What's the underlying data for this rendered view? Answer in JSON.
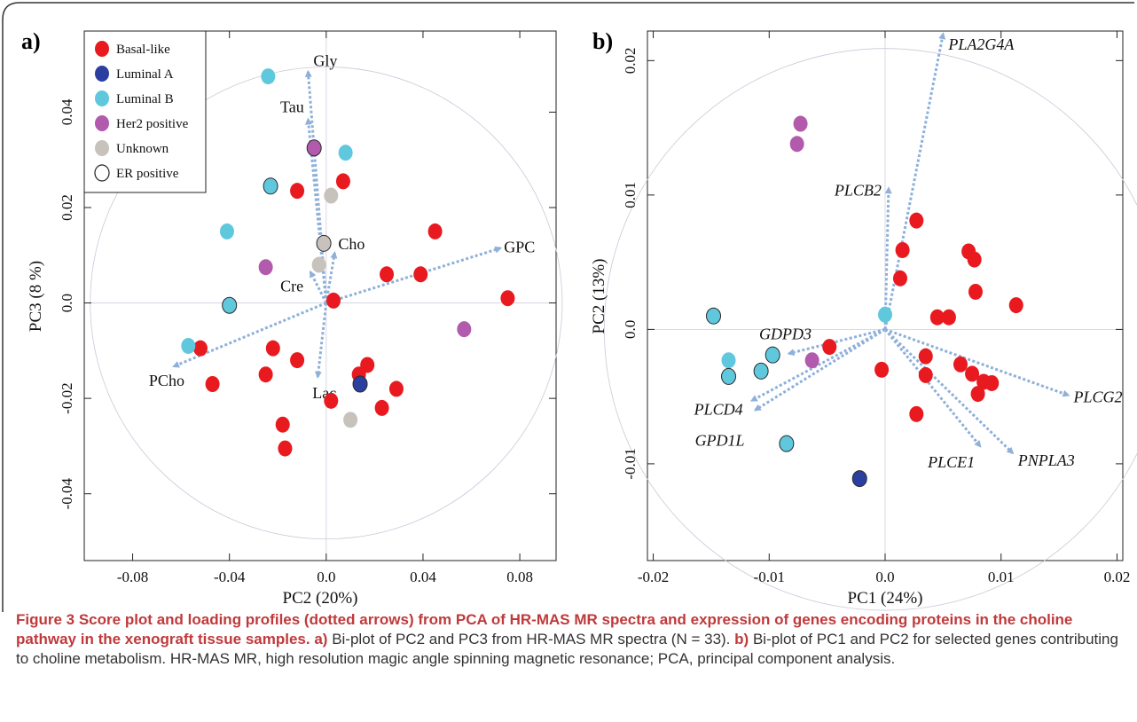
{
  "figure": {
    "caption": {
      "title": "Figure 3 Score plot and loading profiles (dotted arrows) from PCA of HR-MAS MR spectra and expression of genes encoding proteins in the choline pathway in the xenograft tissue samples.",
      "part_a_label": "a)",
      "part_a_text": "Bi-plot of PC2 and PC3 from HR-MAS MR spectra (N = 33).",
      "part_b_label": "b)",
      "part_b_text": "Bi-plot of PC1 and PC2 for selected genes contributing to choline metabolism. HR-MAS MR, high resolution magic angle spinning magnetic resonance; PCA, principal component analysis."
    }
  },
  "colors": {
    "basal": "#e8191f",
    "luminal_a": "#2b3fa0",
    "luminal_b": "#5fc8dd",
    "her2": "#b25aac",
    "unknown": "#c8c2bc",
    "arrow": "#8eb0d9",
    "circle": "#c9c9d9"
  },
  "chart_data": [
    {
      "panel_label": "a)",
      "type": "scatter",
      "xlabel": "PC2 (20%)",
      "ylabel": "PC3 (8 %)",
      "xlim": [
        -0.1,
        0.095
      ],
      "ylim": [
        -0.054,
        0.057
      ],
      "xticks": [
        -0.08,
        -0.04,
        0.0,
        0.04,
        0.08
      ],
      "xtick_labels": [
        "-0.08",
        "-0.04",
        "0.0",
        "0.04",
        "0.08"
      ],
      "yticks": [
        -0.04,
        -0.02,
        0.0,
        0.02,
        0.04
      ],
      "ytick_labels": [
        "-0.04",
        "-0.02",
        "0.0",
        "0.02",
        "0.04"
      ],
      "legend": {
        "placement": "top-left",
        "entries": [
          {
            "label": "Basal-like",
            "key": "basal"
          },
          {
            "label": "Luminal A",
            "key": "luminal_a"
          },
          {
            "label": "Luminal B",
            "key": "luminal_b"
          },
          {
            "label": "Her2 positive",
            "key": "her2"
          },
          {
            "label": "Unknown",
            "key": "unknown"
          },
          {
            "label": "ER positive",
            "key": "er"
          }
        ]
      },
      "points": [
        {
          "x": -0.052,
          "y": -0.0095,
          "group": "basal"
        },
        {
          "x": -0.047,
          "y": -0.017,
          "group": "basal"
        },
        {
          "x": -0.022,
          "y": -0.0095,
          "group": "basal"
        },
        {
          "x": -0.025,
          "y": -0.015,
          "group": "basal"
        },
        {
          "x": -0.012,
          "y": -0.012,
          "group": "basal"
        },
        {
          "x": -0.018,
          "y": -0.0255,
          "group": "basal"
        },
        {
          "x": -0.017,
          "y": -0.0305,
          "group": "basal"
        },
        {
          "x": -0.012,
          "y": 0.0235,
          "group": "basal"
        },
        {
          "x": 0.007,
          "y": 0.0255,
          "group": "basal"
        },
        {
          "x": 0.003,
          "y": 0.0005,
          "group": "basal"
        },
        {
          "x": 0.0135,
          "y": -0.015,
          "group": "basal"
        },
        {
          "x": 0.017,
          "y": -0.013,
          "group": "basal"
        },
        {
          "x": 0.002,
          "y": -0.0205,
          "group": "basal"
        },
        {
          "x": 0.023,
          "y": -0.022,
          "group": "basal"
        },
        {
          "x": 0.029,
          "y": -0.018,
          "group": "basal"
        },
        {
          "x": 0.025,
          "y": 0.006,
          "group": "basal"
        },
        {
          "x": 0.039,
          "y": 0.006,
          "group": "basal"
        },
        {
          "x": 0.045,
          "y": 0.015,
          "group": "basal"
        },
        {
          "x": 0.075,
          "y": 0.001,
          "group": "basal"
        },
        {
          "x": 0.014,
          "y": -0.017,
          "group": "luminal_a",
          "er": true
        },
        {
          "x": -0.024,
          "y": 0.0475,
          "group": "luminal_b"
        },
        {
          "x": -0.023,
          "y": 0.0245,
          "group": "luminal_b",
          "er": true
        },
        {
          "x": 0.008,
          "y": 0.0315,
          "group": "luminal_b"
        },
        {
          "x": -0.041,
          "y": 0.015,
          "group": "luminal_b"
        },
        {
          "x": -0.04,
          "y": -0.0005,
          "group": "luminal_b",
          "er": true
        },
        {
          "x": -0.057,
          "y": -0.009,
          "group": "luminal_b"
        },
        {
          "x": -0.005,
          "y": 0.0325,
          "group": "her2",
          "er": true
        },
        {
          "x": -0.025,
          "y": 0.0075,
          "group": "her2"
        },
        {
          "x": 0.057,
          "y": -0.0055,
          "group": "her2"
        },
        {
          "x": 0.002,
          "y": 0.0225,
          "group": "unknown"
        },
        {
          "x": -0.001,
          "y": 0.0125,
          "group": "unknown",
          "er": true
        },
        {
          "x": -0.003,
          "y": 0.008,
          "group": "unknown"
        },
        {
          "x": 0.01,
          "y": -0.0245,
          "group": "unknown"
        }
      ],
      "loadings": [
        {
          "label": "GPC",
          "x": 0.072,
          "y": 0.0115
        },
        {
          "label": "PCho",
          "x": -0.063,
          "y": -0.0133
        },
        {
          "label": "Gly",
          "x": -0.0075,
          "y": 0.0485
        },
        {
          "label": "Tau",
          "x": -0.0075,
          "y": 0.0385
        },
        {
          "label": "Cho",
          "x": 0.0035,
          "y": 0.0105
        },
        {
          "label": "Cre",
          "x": -0.0065,
          "y": 0.0065
        },
        {
          "label": "Lac",
          "x": -0.0035,
          "y": -0.0155
        }
      ]
    },
    {
      "panel_label": "b)",
      "type": "scatter",
      "xlabel": "PC1 (24%)",
      "ylabel": "PC2 (13%)",
      "xlim": [
        -0.0205,
        0.0205
      ],
      "ylim": [
        -0.0172,
        0.0222
      ],
      "xticks": [
        -0.02,
        -0.01,
        0.0,
        0.01,
        0.02
      ],
      "xtick_labels": [
        "-0.02",
        "-0.01",
        "0.0",
        "0.01",
        "0.02"
      ],
      "yticks": [
        -0.01,
        0.0,
        0.01,
        0.02
      ],
      "ytick_labels": [
        "-0.01",
        "0.0",
        "0.01",
        "0.02"
      ],
      "points": [
        {
          "x": 0.0027,
          "y": 0.0081,
          "group": "basal"
        },
        {
          "x": 0.0015,
          "y": 0.0059,
          "group": "basal"
        },
        {
          "x": 0.0013,
          "y": 0.0038,
          "group": "basal"
        },
        {
          "x": 0.0072,
          "y": 0.0058,
          "group": "basal"
        },
        {
          "x": 0.0077,
          "y": 0.0052,
          "group": "basal"
        },
        {
          "x": 0.0078,
          "y": 0.0028,
          "group": "basal"
        },
        {
          "x": 0.0113,
          "y": 0.0018,
          "group": "basal"
        },
        {
          "x": 0.0045,
          "y": 0.0009,
          "group": "basal"
        },
        {
          "x": 0.0055,
          "y": 0.0009,
          "group": "basal"
        },
        {
          "x": 0.0035,
          "y": -0.002,
          "group": "basal"
        },
        {
          "x": 0.0065,
          "y": -0.0026,
          "group": "basal"
        },
        {
          "x": 0.0075,
          "y": -0.0033,
          "group": "basal"
        },
        {
          "x": 0.0085,
          "y": -0.0039,
          "group": "basal"
        },
        {
          "x": 0.0092,
          "y": -0.004,
          "group": "basal"
        },
        {
          "x": 0.008,
          "y": -0.0048,
          "group": "basal"
        },
        {
          "x": -0.0003,
          "y": -0.003,
          "group": "basal"
        },
        {
          "x": 0.0035,
          "y": -0.0034,
          "group": "basal"
        },
        {
          "x": 0.0027,
          "y": -0.0063,
          "group": "basal"
        },
        {
          "x": -0.0048,
          "y": -0.0013,
          "group": "basal"
        },
        {
          "x": -0.0022,
          "y": -0.0111,
          "group": "luminal_a",
          "er": true
        },
        {
          "x": -0.0148,
          "y": 0.001,
          "group": "luminal_b",
          "er": true
        },
        {
          "x": -0.0135,
          "y": -0.0023,
          "group": "luminal_b"
        },
        {
          "x": -0.0135,
          "y": -0.0035,
          "group": "luminal_b",
          "er": true
        },
        {
          "x": -0.0097,
          "y": -0.0019,
          "group": "luminal_b",
          "er": true
        },
        {
          "x": -0.0107,
          "y": -0.0031,
          "group": "luminal_b",
          "er": true
        },
        {
          "x": -0.0085,
          "y": -0.0085,
          "group": "luminal_b",
          "er": true
        },
        {
          "x": 0.0,
          "y": 0.0011,
          "group": "luminal_b"
        },
        {
          "x": -0.0073,
          "y": 0.0153,
          "group": "her2"
        },
        {
          "x": -0.0076,
          "y": 0.0138,
          "group": "her2"
        },
        {
          "x": -0.0063,
          "y": -0.0023,
          "group": "her2"
        }
      ],
      "loadings": [
        {
          "label": "PLA2G4A",
          "x": 0.005,
          "y": 0.022
        },
        {
          "label": "PLCB2",
          "x": 0.0003,
          "y": 0.0105
        },
        {
          "label": "GDPD3",
          "x": -0.0083,
          "y": -0.0018
        },
        {
          "label": "PLCD4",
          "x": -0.0115,
          "y": -0.0053
        },
        {
          "label": "GPD1L",
          "x": -0.0112,
          "y": -0.006
        },
        {
          "label": "PLCG2",
          "x": 0.0158,
          "y": -0.0049
        },
        {
          "label": "PLCE1",
          "x": 0.0082,
          "y": -0.0087
        },
        {
          "label": "PNPLA3",
          "x": 0.011,
          "y": -0.0092
        }
      ]
    }
  ]
}
